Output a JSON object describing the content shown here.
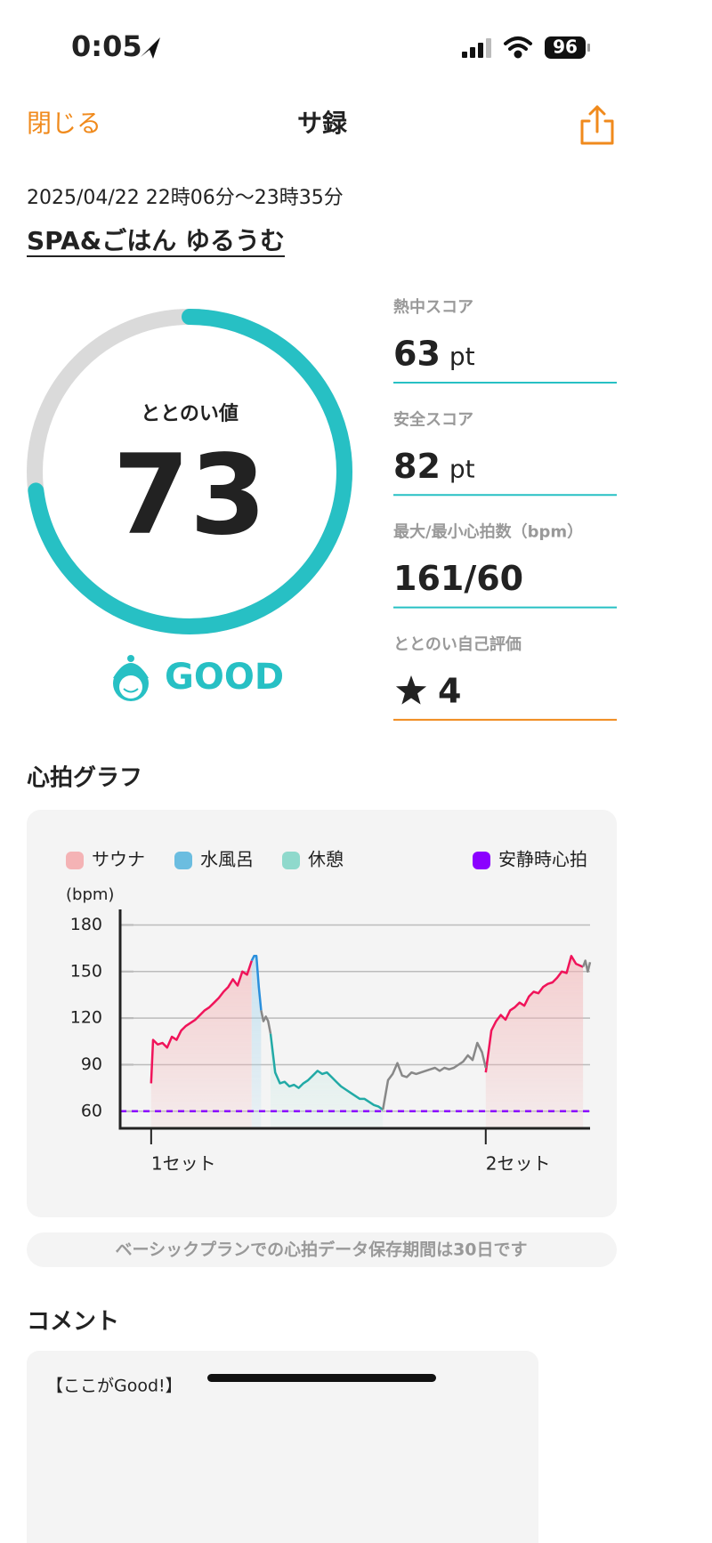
{
  "status_bar": {
    "time": "0:05",
    "battery": "96"
  },
  "header": {
    "close": "閉じる",
    "title": "サ録"
  },
  "record": {
    "datetime": "2025/04/22 22時06分〜23時35分",
    "place": "SPA&ごはん ゆるうむ"
  },
  "gauge": {
    "label": "ととのい値",
    "value": 73,
    "range": [
      0,
      100
    ],
    "rating": "GOOD",
    "color": "#27c0c4",
    "track_color": "#dadada"
  },
  "scores": [
    {
      "label": "熱中スコア",
      "value": 63,
      "unit": "pt",
      "color": "#27c0c4"
    },
    {
      "label": "安全スコア",
      "value": 82,
      "unit": "pt",
      "color": "#27c0c4"
    },
    {
      "label": "最大/最小心拍数（bpm）",
      "value": "161/60",
      "color": "#27c0c4"
    },
    {
      "label": "ととのい自己評価",
      "value": 4,
      "color": "#f08a1c"
    }
  ],
  "chart_heading": "心拍グラフ",
  "chart_data": {
    "type": "line",
    "ylabel": "(bpm)",
    "xlim": [
      0,
      100
    ],
    "ylim": [
      49,
      190
    ],
    "yticks": [
      60,
      90,
      120,
      150,
      180
    ],
    "xticks": [
      {
        "value": 6.6,
        "label": "1セット"
      },
      {
        "value": 77.8,
        "label": "2セット"
      }
    ],
    "grid": true,
    "series": [
      {
        "name": "サウナ",
        "color": "#f0145a",
        "legend_color": "#f4b3b5",
        "fill": "#f4b3b5",
        "x": [
          6.6,
          7,
          8,
          9,
          10,
          11,
          12,
          13,
          14,
          15,
          16,
          17,
          18,
          19,
          20,
          21,
          22,
          23,
          24,
          25,
          26,
          27,
          28,
          null,
          77.8,
          79,
          80,
          81,
          82,
          83,
          84,
          85,
          86,
          87,
          88,
          89,
          90,
          91,
          92,
          93,
          94,
          95,
          96,
          97,
          98.5
        ],
        "values": [
          78,
          106,
          103,
          104,
          101,
          108,
          106,
          112,
          115,
          117,
          119,
          122,
          125,
          127,
          130,
          133,
          137,
          140,
          145,
          141,
          150,
          148,
          157,
          null,
          85,
          112,
          118,
          122,
          119,
          125,
          127,
          130,
          128,
          134,
          137,
          136,
          140,
          142,
          143,
          146,
          150,
          149,
          160,
          155,
          153
        ]
      },
      {
        "name": "水風呂",
        "color": "#2a8fdc",
        "legend_color": "#6bbde0",
        "fill": "#a9d7ee",
        "x": [
          28,
          28.5,
          29,
          29.5,
          30
        ],
        "values": [
          157,
          160,
          160,
          140,
          125
        ]
      },
      {
        "name": "休憩",
        "color": "#22aaa6",
        "legend_color": "#8fd9cc",
        "fill": "#bfe9e1",
        "x": [
          32,
          33,
          34,
          35,
          36,
          37,
          38,
          39,
          40,
          41,
          42,
          43,
          44,
          45,
          46,
          47,
          48,
          49,
          50,
          51,
          52,
          53,
          54,
          55,
          55.9
        ],
        "values": [
          110,
          85,
          78,
          79,
          76,
          77,
          75,
          78,
          80,
          83,
          86,
          84,
          85,
          82,
          79,
          76,
          74,
          72,
          70,
          68,
          68,
          66,
          64,
          63,
          61
        ]
      },
      {
        "color": "#888888",
        "x": [
          30,
          30.5,
          31,
          31.5,
          32,
          null,
          55.9,
          57,
          58,
          59,
          60,
          61,
          62,
          63,
          64,
          65,
          66,
          67,
          68,
          69,
          70,
          71,
          72,
          73,
          74,
          75,
          76,
          77,
          77.8,
          null,
          98.5,
          99,
          99.5,
          100
        ],
        "values": [
          125,
          118,
          121,
          118,
          110,
          null,
          61,
          80,
          84,
          91,
          83,
          82,
          85,
          84,
          85,
          86,
          87,
          88,
          86,
          88,
          87,
          88,
          90,
          92,
          96,
          93,
          104,
          98,
          88,
          null,
          153,
          157,
          150,
          156
        ]
      },
      {
        "name": "安静時心拍",
        "color": "#8b00ff",
        "legend_color": "#8b00ff",
        "dashed": true,
        "values": [
          60
        ]
      }
    ]
  },
  "notice": "ベーシックプランでの心拍データ保存期間は30日です",
  "comment": {
    "heading": "コメント",
    "text": "【ここがGood!】"
  }
}
